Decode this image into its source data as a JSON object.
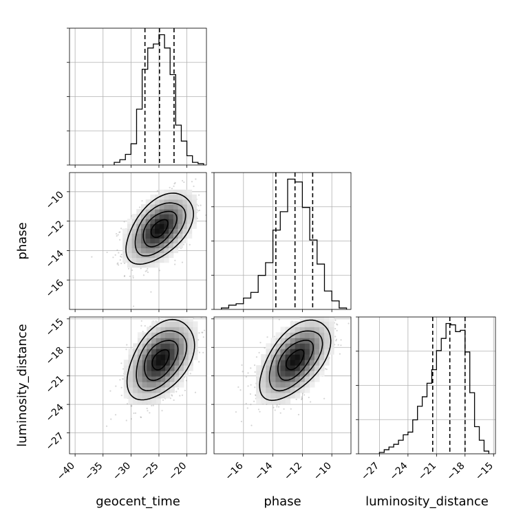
{
  "chart_data": {
    "type": "corner",
    "grid": true,
    "parameters": [
      {
        "name": "geocent_time",
        "label": "geocent_time",
        "range": [
          -41,
          -16.5
        ],
        "ticks": [
          -40,
          -35,
          -30,
          -25,
          -20
        ],
        "tick_labels": [
          "−40",
          "−35",
          "−30",
          "−25",
          "−20"
        ],
        "quantiles": [
          -27.5,
          -24.9,
          -22.3
        ],
        "hist": {
          "bin_edges": [
            -33,
            -32,
            -31,
            -30,
            -29,
            -28,
            -27,
            -26,
            -25,
            -24,
            -23,
            -22,
            -21,
            -20,
            -19,
            -18,
            -17
          ],
          "counts": [
            2,
            4,
            8,
            16,
            42,
            72,
            88,
            91,
            98,
            88,
            68,
            30,
            18,
            7,
            2,
            1
          ]
        }
      },
      {
        "name": "phase",
        "label": "phase",
        "range": [
          -18,
          -8.7
        ],
        "ticks": [
          -16,
          -14,
          -12,
          -10
        ],
        "tick_labels": [
          "−16",
          "−14",
          "−12",
          "−10"
        ],
        "quantiles": [
          -13.8,
          -12.5,
          -11.3
        ],
        "hist": {
          "bin_edges": [
            -17.5,
            -17,
            -16.5,
            -16,
            -15.5,
            -15,
            -14.5,
            -14,
            -13.5,
            -13,
            -12.5,
            -12,
            -11.5,
            -11,
            -10.5,
            -10,
            -9.5,
            -9
          ],
          "counts": [
            1,
            3,
            4,
            8,
            12,
            24,
            33,
            56,
            69,
            92,
            90,
            72,
            49,
            32,
            13,
            6,
            1
          ]
        }
      },
      {
        "name": "luminosity_distance",
        "label": "luminosity_distance",
        "range": [
          -29.2,
          -14.8
        ],
        "ticks": [
          -27,
          -24,
          -21,
          -18,
          -15
        ],
        "tick_labels": [
          "−27",
          "−24",
          "−21",
          "−18",
          "−15"
        ],
        "quantiles": [
          -21.4,
          -19.6,
          -18.0
        ],
        "hist": {
          "bin_edges": [
            -27.0,
            -26.5,
            -26.0,
            -25.5,
            -25.0,
            -24.5,
            -24.0,
            -23.5,
            -23.0,
            -22.5,
            -22.0,
            -21.5,
            -21.0,
            -20.5,
            -20.0,
            -19.5,
            -19.0,
            -18.5,
            -18.0,
            -17.5,
            -17.0,
            -16.5,
            -16.0,
            -15.5
          ],
          "counts": [
            1,
            3,
            5,
            7,
            10,
            14,
            16,
            25,
            35,
            42,
            52,
            62,
            76,
            85,
            96,
            95,
            90,
            91,
            75,
            45,
            20,
            10,
            2
          ]
        }
      }
    ],
    "pairs": [
      {
        "x": "geocent_time",
        "y": "phase",
        "mean": [
          -24.9,
          -12.5
        ],
        "sd": [
          3.0,
          1.2
        ],
        "corr": 0.5,
        "contour_levels": [
          0.5,
          1.0,
          1.5,
          2.0
        ]
      },
      {
        "x": "geocent_time",
        "y": "luminosity_distance",
        "mean": [
          -24.7,
          -19.3
        ],
        "sd": [
          3.0,
          2.1
        ],
        "corr": 0.45,
        "contour_levels": [
          0.5,
          1.0,
          1.5,
          2.0
        ]
      },
      {
        "x": "phase",
        "y": "luminosity_distance",
        "mean": [
          -12.5,
          -19.3
        ],
        "sd": [
          1.2,
          2.1
        ],
        "corr": 0.55,
        "contour_levels": [
          0.5,
          1.0,
          1.5,
          2.0
        ]
      }
    ]
  }
}
